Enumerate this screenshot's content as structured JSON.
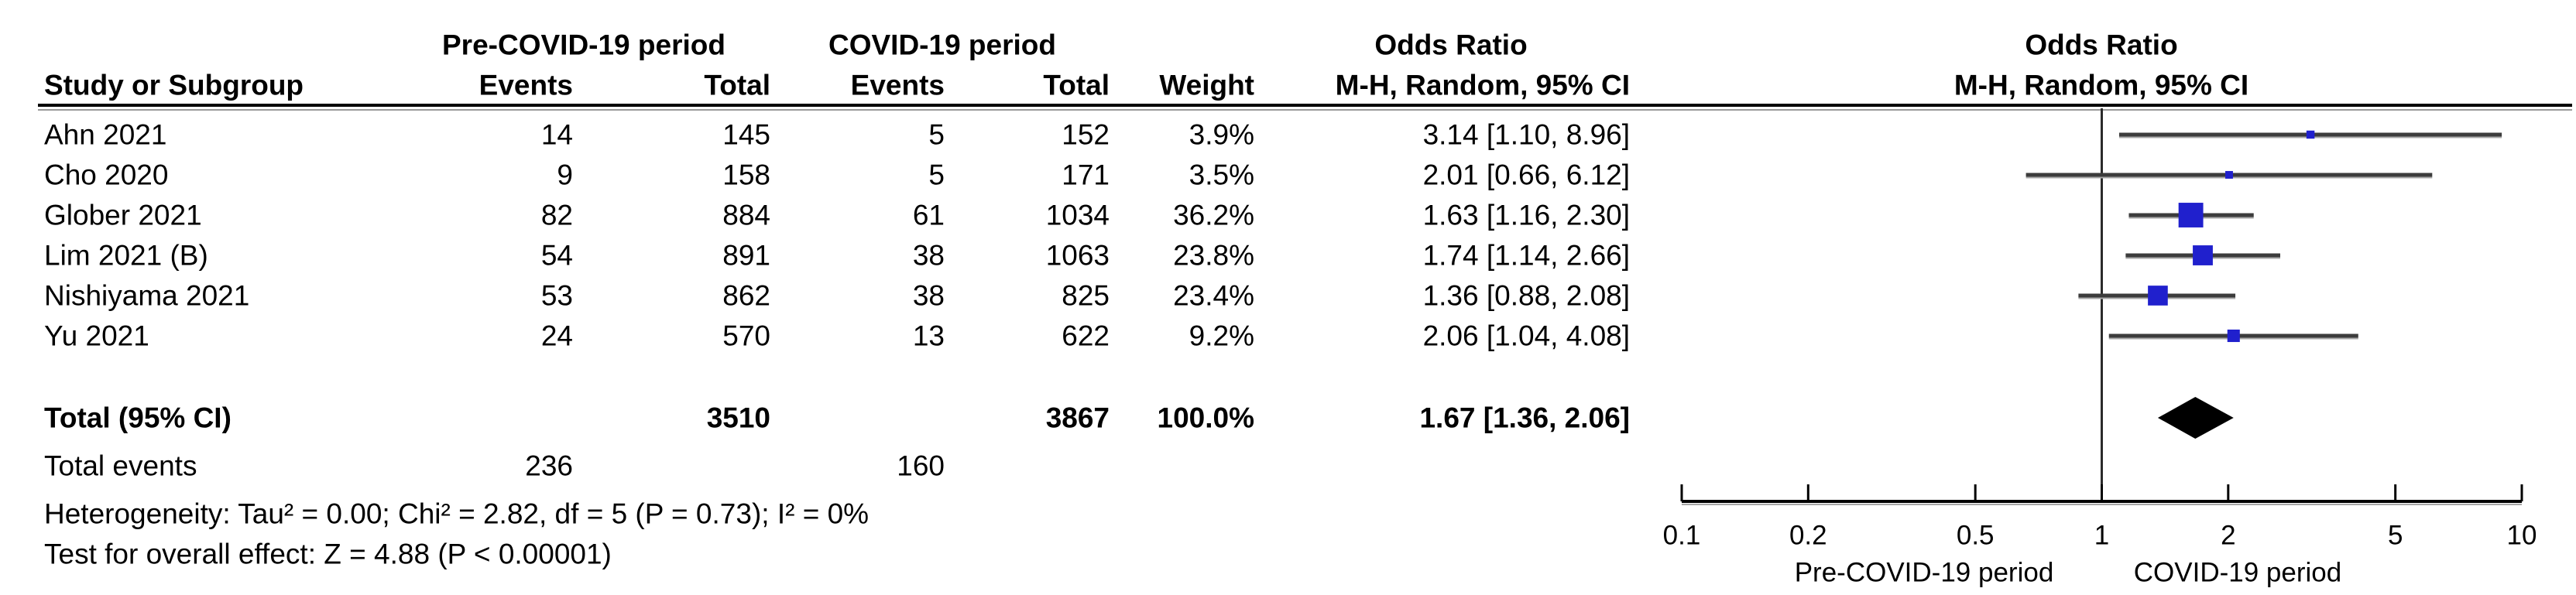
{
  "chart_data": {
    "type": "forest",
    "title_left_column": "Study or Subgroup",
    "effect_measure": "Odds Ratio",
    "method": "M-H, Random, 95% CI",
    "header": {
      "group1": "Pre-COVID-19 period",
      "group2": "COVID-19 period",
      "study": "Study or Subgroup",
      "events": "Events",
      "total": "Total",
      "weight": "Weight",
      "or_label": "Odds Ratio",
      "or_method": "M-H, Random, 95% CI",
      "plot_or_label": "Odds Ratio",
      "plot_or_method": "M-H, Random, 95% CI"
    },
    "studies": [
      {
        "name": "Ahn 2021",
        "pre_events": "14",
        "pre_total": "145",
        "covid_events": "5",
        "covid_total": "152",
        "weight": "3.9%",
        "or_ci": "3.14 [1.10, 8.96]",
        "or": 3.14,
        "ci_low": 1.1,
        "ci_high": 8.96,
        "weight_pct": 3.9
      },
      {
        "name": "Cho 2020",
        "pre_events": "9",
        "pre_total": "158",
        "covid_events": "5",
        "covid_total": "171",
        "weight": "3.5%",
        "or_ci": "2.01 [0.66, 6.12]",
        "or": 2.01,
        "ci_low": 0.66,
        "ci_high": 6.12,
        "weight_pct": 3.5
      },
      {
        "name": "Glober 2021",
        "pre_events": "82",
        "pre_total": "884",
        "covid_events": "61",
        "covid_total": "1034",
        "weight": "36.2%",
        "or_ci": "1.63 [1.16, 2.30]",
        "or": 1.63,
        "ci_low": 1.16,
        "ci_high": 2.3,
        "weight_pct": 36.2
      },
      {
        "name": "Lim 2021 (B)",
        "pre_events": "54",
        "pre_total": "891",
        "covid_events": "38",
        "covid_total": "1063",
        "weight": "23.8%",
        "or_ci": "1.74 [1.14, 2.66]",
        "or": 1.74,
        "ci_low": 1.14,
        "ci_high": 2.66,
        "weight_pct": 23.8
      },
      {
        "name": "Nishiyama 2021",
        "pre_events": "53",
        "pre_total": "862",
        "covid_events": "38",
        "covid_total": "825",
        "weight": "23.4%",
        "or_ci": "1.36 [0.88, 2.08]",
        "or": 1.36,
        "ci_low": 0.88,
        "ci_high": 2.08,
        "weight_pct": 23.4
      },
      {
        "name": "Yu 2021",
        "pre_events": "24",
        "pre_total": "570",
        "covid_events": "13",
        "covid_total": "622",
        "weight": "9.2%",
        "or_ci": "2.06 [1.04, 4.08]",
        "or": 2.06,
        "ci_low": 1.04,
        "ci_high": 4.08,
        "weight_pct": 9.2
      }
    ],
    "total_row": {
      "label": "Total (95% CI)",
      "pre_total": "3510",
      "covid_total": "3867",
      "weight": "100.0%",
      "or_ci": "1.67 [1.36, 2.06]",
      "or": 1.67,
      "ci_low": 1.36,
      "ci_high": 2.06
    },
    "total_events": {
      "label": "Total events",
      "pre": "236",
      "covid": "160"
    },
    "heterogeneity": "Heterogeneity: Tau² = 0.00; Chi² = 2.82, df = 5 (P = 0.73); I² = 0%",
    "overall_effect": "Test for overall effect: Z = 4.88 (P < 0.00001)",
    "axis": {
      "scale": "log10",
      "min": 0.1,
      "max": 10,
      "ticks": [
        0.1,
        0.2,
        0.5,
        1,
        2,
        5,
        10
      ],
      "tick_labels": [
        "0.1",
        "0.2",
        "0.5",
        "1",
        "2",
        "5",
        "10"
      ],
      "null_line": 1,
      "left_label": "Pre-COVID-19 period",
      "right_label": "COVID-19 period"
    },
    "colors": {
      "square": "#2020CD",
      "ci_line": "#3C3C3C",
      "ci_line_shadow": "#A8A8A8",
      "diamond": "#000000",
      "axis": "#000000",
      "text": "#000000"
    }
  }
}
